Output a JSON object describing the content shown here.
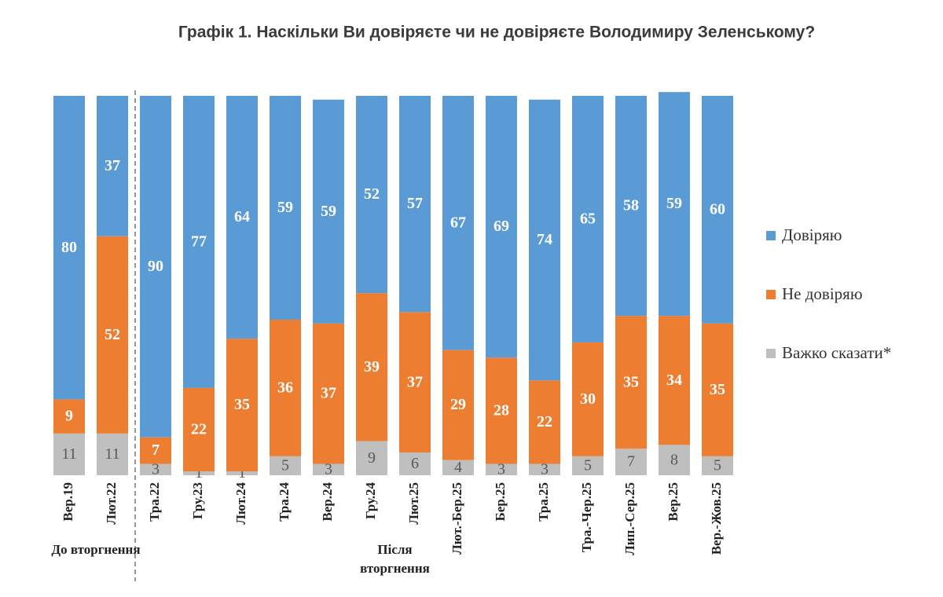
{
  "chart_data": {
    "type": "stacked_bar_100",
    "title": "Графік 1. Наскільки Ви довіряєте чи не довіряєте Володимиру Зеленському?",
    "categories": [
      "Вер.19",
      "Лют.22",
      "Тра.22",
      "Гру.23",
      "Лют.24",
      "Тра.24",
      "Вер.24",
      "Гру.24",
      "Лют.25",
      "Лют.-Бер.25",
      "Бер.25",
      "Тра.25",
      "Тра.-Чер.25",
      "Лип.-Сер.25",
      "Вер.25",
      "Вер.-Жов.25"
    ],
    "series": [
      {
        "name": "Довіряю",
        "color": "#5b9bd5",
        "values": [
          80,
          37,
          90,
          77,
          64,
          59,
          59,
          52,
          57,
          67,
          69,
          74,
          65,
          58,
          59,
          60
        ]
      },
      {
        "name": "Не довіряю",
        "color": "#ed7d31",
        "values": [
          9,
          52,
          7,
          22,
          35,
          36,
          37,
          39,
          37,
          29,
          28,
          22,
          30,
          35,
          34,
          35
        ]
      },
      {
        "name": "Важко сказати*",
        "color": "#bfbfbf",
        "values": [
          11,
          11,
          3,
          1,
          1,
          5,
          3,
          9,
          6,
          4,
          3,
          3,
          5,
          7,
          8,
          5
        ]
      }
    ],
    "ylim": [
      0,
      100
    ],
    "annotations": [
      "До вторгнення",
      "Після вторгнення"
    ],
    "legend": "right"
  }
}
